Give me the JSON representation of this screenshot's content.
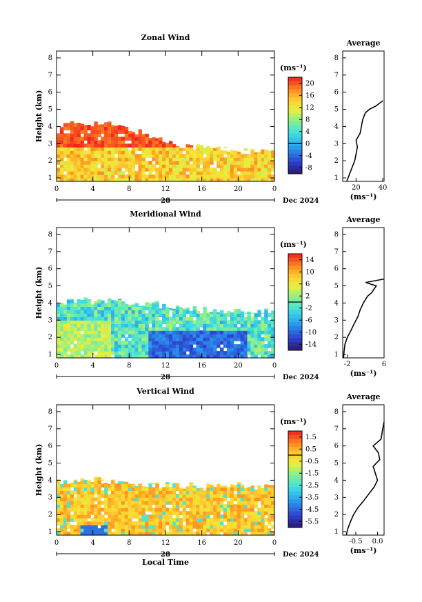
{
  "chart_data": [
    {
      "type": "heatmap",
      "title": "Zonal Wind",
      "ylabel": "Height (km)",
      "xlabel": "",
      "x_ticks": [
        "0",
        "4",
        "8",
        "12",
        "16",
        "20",
        "0"
      ],
      "y_ticks": [
        "1",
        "2",
        "3",
        "4",
        "5",
        "6",
        "7",
        "8"
      ],
      "date_day": "28",
      "date_label": "Dec 2024",
      "unit": "(ms⁻¹)",
      "colorbar_ticks": [
        "20",
        "16",
        "12",
        "8",
        "4",
        "0",
        "-4",
        "-8"
      ],
      "colorbar_range": [
        -10,
        22
      ],
      "profile_title": "Average",
      "profile_xlabel": "(ms⁻¹)",
      "profile_xticks": [
        "20",
        "40"
      ],
      "profile_xlim": [
        10,
        41
      ],
      "profile": {
        "height": [
          0.8,
          1.2,
          1.6,
          2.0,
          2.4,
          2.8,
          3.2,
          3.6,
          4.0,
          4.4,
          4.8,
          5.0,
          5.2,
          5.5
        ],
        "value": [
          13,
          15,
          17,
          19,
          20,
          21,
          20,
          23,
          24,
          25,
          27,
          30,
          35,
          40
        ]
      },
      "filled_region": {
        "top_height_km": [
          4.0,
          4.2,
          4.2,
          4.1,
          3.8,
          3.5,
          3.1,
          2.9,
          2.8,
          2.7,
          2.6,
          2.5,
          2.6
        ]
      }
    },
    {
      "type": "heatmap",
      "title": "Meridional Wind",
      "ylabel": "Height (km)",
      "xlabel": "",
      "x_ticks": [
        "0",
        "4",
        "8",
        "12",
        "16",
        "20",
        "0"
      ],
      "y_ticks": [
        "1",
        "2",
        "3",
        "4",
        "5",
        "6",
        "7",
        "8"
      ],
      "date_day": "28",
      "date_label": "Dec 2024",
      "unit": "(ms⁻¹)",
      "colorbar_ticks": [
        "14",
        "10",
        "6",
        "2",
        "-2",
        "-6",
        "-10",
        "-14"
      ],
      "colorbar_range": [
        -16,
        16
      ],
      "profile_title": "Average",
      "profile_xlabel": "(ms⁻¹)",
      "profile_xticks": [
        "-2",
        "6"
      ],
      "profile_xlim": [
        -3,
        6
      ],
      "profile": {
        "height": [
          0.8,
          1.2,
          1.6,
          2.0,
          2.4,
          2.8,
          3.2,
          3.6,
          4.0,
          4.4,
          4.6,
          4.8,
          5.0,
          5.2,
          5.4
        ],
        "value": [
          -2.8,
          -2.7,
          -2.5,
          -2.0,
          -1.2,
          -0.5,
          0.3,
          0.8,
          1.5,
          2.4,
          3.3,
          3.8,
          4.3,
          2.0,
          6.0
        ]
      },
      "filled_region": {
        "top_height_km": [
          4.0,
          4.2,
          4.1,
          4.2,
          4.0,
          4.0,
          3.8,
          3.7,
          3.6,
          3.6,
          3.5,
          3.5,
          3.5
        ]
      }
    },
    {
      "type": "heatmap",
      "title": "Vertical Wind",
      "ylabel": "Height (km)",
      "xlabel": "Local Time",
      "x_ticks": [
        "0",
        "4",
        "8",
        "12",
        "16",
        "20",
        "0"
      ],
      "y_ticks": [
        "1",
        "2",
        "3",
        "4",
        "5",
        "6",
        "7",
        "8"
      ],
      "date_day": "28",
      "date_label": "Dec 2024",
      "unit": "(ms⁻¹)",
      "colorbar_ticks": [
        "1.5",
        "0.5",
        "-0.5",
        "-1.5",
        "-2.5",
        "-3.5",
        "-4.5",
        "-5.5"
      ],
      "colorbar_range": [
        -6,
        2
      ],
      "profile_title": "Average",
      "profile_xlabel": "(ms⁻¹)",
      "profile_xticks": [
        "-0.5",
        "0.0"
      ],
      "profile_xlim": [
        -0.8,
        0.15
      ],
      "profile": {
        "height": [
          0.8,
          1.2,
          1.6,
          2.0,
          2.4,
          2.8,
          3.2,
          3.6,
          4.0,
          4.4,
          4.8,
          5.2,
          5.6,
          6.0,
          6.4,
          7.0,
          7.4
        ],
        "value": [
          -0.72,
          -0.68,
          -0.62,
          -0.55,
          -0.45,
          -0.32,
          -0.2,
          -0.08,
          0.0,
          -0.05,
          -0.1,
          0.05,
          0.02,
          -0.1,
          0.08,
          0.12,
          0.15
        ]
      },
      "filled_region": {
        "top_height_km": [
          3.9,
          4.0,
          4.0,
          3.9,
          3.8,
          3.7,
          3.7,
          3.7,
          3.7,
          3.7,
          3.7,
          3.6,
          3.6
        ]
      }
    }
  ]
}
